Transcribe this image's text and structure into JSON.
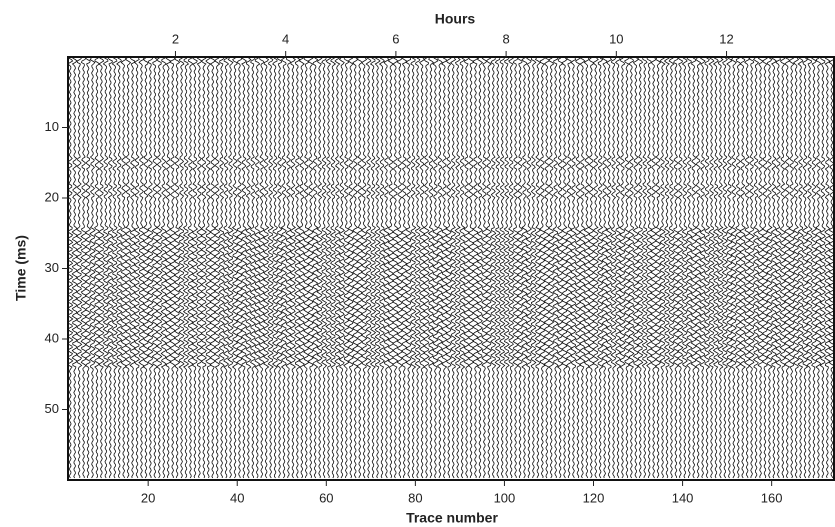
{
  "chart_data": {
    "type": "wiggle",
    "xlabel": "Trace number",
    "x2label": "Hours",
    "ylabel": "Time (ms)",
    "xlim": [
      2,
      174
    ],
    "xticks": [
      20,
      40,
      60,
      80,
      100,
      120,
      140,
      160
    ],
    "x2lim": [
      0.05,
      13.95
    ],
    "x2ticks": [
      2,
      4,
      6,
      8,
      10,
      12
    ],
    "ylim": [
      60,
      0
    ],
    "yticks": [
      10,
      20,
      30,
      40,
      50
    ]
  }
}
